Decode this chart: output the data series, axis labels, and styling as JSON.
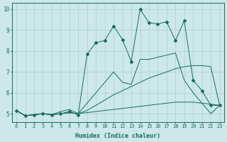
{
  "xlabel": "Humidex (Indice chaleur)",
  "xlim": [
    -0.5,
    23.5
  ],
  "ylim": [
    4.6,
    10.3
  ],
  "bg_color": "#cce8e8",
  "grid_color": "#b0d0d0",
  "line_color": "#1a6b5a",
  "series": [
    {
      "x": [
        0,
        1,
        2,
        3,
        4,
        5,
        6,
        7,
        8,
        9,
        10,
        11,
        12,
        13,
        14,
        15,
        16,
        17,
        18,
        19,
        20,
        21,
        22,
        23
      ],
      "y": [
        5.15,
        4.9,
        4.95,
        5.0,
        4.95,
        5.0,
        5.05,
        5.0,
        5.05,
        5.1,
        5.15,
        5.2,
        5.25,
        5.3,
        5.35,
        5.4,
        5.45,
        5.5,
        5.55,
        5.55,
        5.55,
        5.5,
        5.45,
        5.4
      ],
      "marker": false
    },
    {
      "x": [
        0,
        1,
        2,
        3,
        4,
        5,
        6,
        7,
        8,
        9,
        10,
        11,
        12,
        13,
        14,
        15,
        16,
        17,
        18,
        19,
        20,
        21,
        22,
        23
      ],
      "y": [
        5.15,
        4.9,
        4.95,
        5.0,
        4.95,
        5.0,
        5.05,
        5.0,
        5.15,
        5.4,
        5.65,
        5.9,
        6.1,
        6.3,
        6.5,
        6.7,
        6.85,
        7.0,
        7.15,
        7.25,
        7.3,
        7.3,
        7.25,
        5.4
      ],
      "marker": false
    },
    {
      "x": [
        0,
        1,
        2,
        3,
        4,
        5,
        6,
        7,
        8,
        9,
        10,
        11,
        12,
        13,
        14,
        15,
        16,
        17,
        18,
        19,
        20,
        21,
        22,
        23
      ],
      "y": [
        5.15,
        4.9,
        4.95,
        5.0,
        4.95,
        5.1,
        5.2,
        5.0,
        5.5,
        6.0,
        6.5,
        7.0,
        6.5,
        6.4,
        7.6,
        7.6,
        7.7,
        7.8,
        7.9,
        6.6,
        6.0,
        5.5,
        5.0,
        5.4
      ],
      "marker": false
    },
    {
      "x": [
        0,
        1,
        2,
        3,
        4,
        5,
        6,
        7,
        8,
        9,
        10,
        11,
        12,
        13,
        14,
        15,
        16,
        17,
        18,
        19,
        20,
        21,
        22,
        23
      ],
      "y": [
        5.15,
        4.9,
        4.95,
        5.0,
        4.95,
        5.0,
        5.1,
        4.95,
        7.85,
        8.4,
        8.5,
        9.2,
        8.55,
        7.5,
        10.0,
        9.35,
        9.3,
        9.4,
        8.5,
        9.45,
        6.6,
        6.1,
        5.4,
        5.4
      ],
      "marker": true
    }
  ]
}
